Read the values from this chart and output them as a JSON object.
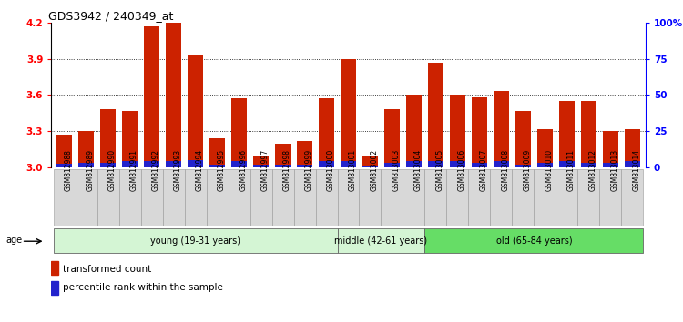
{
  "title": "GDS3942 / 240349_at",
  "samples": [
    "GSM812988",
    "GSM812989",
    "GSM812990",
    "GSM812991",
    "GSM812992",
    "GSM812993",
    "GSM812994",
    "GSM812995",
    "GSM812996",
    "GSM812997",
    "GSM812998",
    "GSM812999",
    "GSM813000",
    "GSM813001",
    "GSM813002",
    "GSM813003",
    "GSM813004",
    "GSM813005",
    "GSM813006",
    "GSM813007",
    "GSM813008",
    "GSM813009",
    "GSM813010",
    "GSM813011",
    "GSM813012",
    "GSM813013",
    "GSM813014"
  ],
  "red_values": [
    3.27,
    3.3,
    3.48,
    3.47,
    4.17,
    4.2,
    3.93,
    3.24,
    3.57,
    3.1,
    3.2,
    3.22,
    3.57,
    3.9,
    3.09,
    3.48,
    3.6,
    3.87,
    3.6,
    3.58,
    3.63,
    3.47,
    3.32,
    3.55,
    3.55,
    3.3,
    3.32
  ],
  "blue_heights": [
    0.03,
    0.04,
    0.04,
    0.05,
    0.05,
    0.05,
    0.06,
    0.02,
    0.05,
    0.02,
    0.02,
    0.02,
    0.05,
    0.05,
    0.01,
    0.04,
    0.05,
    0.05,
    0.05,
    0.04,
    0.05,
    0.02,
    0.04,
    0.05,
    0.04,
    0.04,
    0.05
  ],
  "ymin": 3.0,
  "ymax": 4.2,
  "y_ticks": [
    3.0,
    3.3,
    3.6,
    3.9,
    4.2
  ],
  "right_ticks": [
    0,
    25,
    50,
    75,
    100
  ],
  "right_tick_labels": [
    "0",
    "25",
    "50",
    "75",
    "100%"
  ],
  "age_groups": [
    {
      "label": "young (19-31 years)",
      "start": 0,
      "end": 13,
      "color": "#d4f5d4"
    },
    {
      "label": "middle (42-61 years)",
      "start": 13,
      "end": 17,
      "color": "#d4f5d4"
    },
    {
      "label": "old (65-84 years)",
      "start": 17,
      "end": 27,
      "color": "#66dd66"
    }
  ],
  "bar_color": "#cc2200",
  "blue_color": "#2222cc",
  "label_bg_color": "#d8d8d8",
  "bar_width": 0.7,
  "legend_red": "transformed count",
  "legend_blue": "percentile rank within the sample",
  "age_label": "age"
}
